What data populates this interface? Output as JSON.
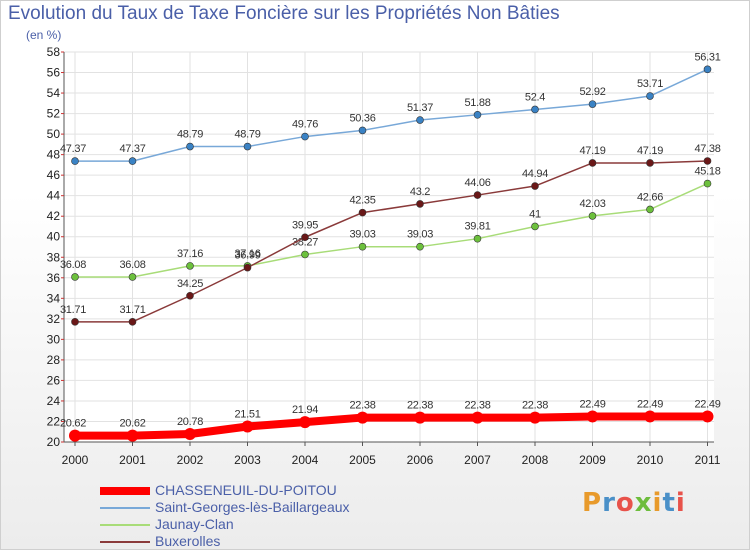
{
  "header": {
    "title": "Evolution du Taux de Taxe Foncière sur les Propriétés Non Bâties",
    "unit": "(en %)"
  },
  "logo": {
    "text": "Proxiti",
    "letters": [
      "P",
      "r",
      "o",
      "x",
      "i",
      "t",
      "i"
    ],
    "colors": [
      "#e89a2b",
      "#4a90c8",
      "#e8524a",
      "#6dbd3c",
      "#e89a2b",
      "#4a90c8",
      "#e8524a"
    ]
  },
  "chart_data": {
    "type": "line",
    "title": "Evolution du Taux de Taxe Foncière sur les Propriétés Non Bâties",
    "ylabel": "(en %)",
    "xlabel": "",
    "ylim": [
      20,
      58
    ],
    "y_ticks": [
      20,
      22,
      24,
      26,
      28,
      30,
      32,
      34,
      36,
      38,
      40,
      42,
      44,
      46,
      48,
      50,
      52,
      54,
      56,
      58
    ],
    "categories": [
      "2000",
      "2001",
      "2002",
      "2003",
      "2004",
      "2005",
      "2006",
      "2007",
      "2008",
      "2009",
      "2010",
      "2011"
    ],
    "grid": true,
    "legend_position": "bottom-left",
    "series": [
      {
        "name": "CHASSENEUIL-DU-POITOU",
        "color": "#ff0000",
        "marker_color": "#ff0000",
        "emphasis": true,
        "values": [
          20.62,
          20.62,
          20.78,
          21.51,
          21.94,
          22.38,
          22.38,
          22.38,
          22.38,
          22.49,
          22.49,
          22.49
        ],
        "labels": [
          "20.62",
          "20.62",
          "20.78",
          "21.51",
          "21.94",
          "22.38",
          "22.38",
          "22.38",
          "22.38",
          "22.49",
          "22.49",
          "22.49"
        ]
      },
      {
        "name": "Saint-Georges-lès-Baillargeaux",
        "color": "#78a8d8",
        "marker_color": "#3a82c4",
        "emphasis": false,
        "values": [
          47.37,
          47.37,
          48.79,
          48.79,
          49.76,
          50.36,
          51.37,
          51.88,
          52.4,
          52.92,
          53.71,
          56.31
        ],
        "labels": [
          "47.37",
          "47.37",
          "48.79",
          "48.79",
          "49.76",
          "50.36",
          "51.37",
          "51.88",
          "52.4",
          "52.92",
          "53.71",
          "56.31"
        ]
      },
      {
        "name": "Jaunay-Clan",
        "color": "#a8dc78",
        "marker_color": "#6cc03c",
        "emphasis": false,
        "values": [
          36.08,
          36.08,
          37.16,
          37.16,
          38.27,
          39.03,
          39.03,
          39.81,
          41,
          42.03,
          42.66,
          45.18
        ],
        "labels": [
          "36.08",
          "36.08",
          "37.16",
          "37.16",
          "38.27",
          "39.03",
          "39.03",
          "39.81",
          "41",
          "42.03",
          "42.66",
          "45.18"
        ]
      },
      {
        "name": "Buxerolles",
        "color": "#8a3a3a",
        "marker_color": "#6a1818",
        "emphasis": false,
        "values": [
          31.71,
          31.71,
          34.25,
          36.99,
          39.95,
          42.35,
          43.2,
          44.06,
          44.94,
          47.19,
          47.19,
          47.38
        ],
        "labels": [
          "31.71",
          "31.71",
          "34.25",
          "36.99",
          "39.95",
          "42.35",
          "43.2",
          "44.06",
          "44.94",
          "47.19",
          "47.19",
          "47.38"
        ]
      }
    ]
  }
}
